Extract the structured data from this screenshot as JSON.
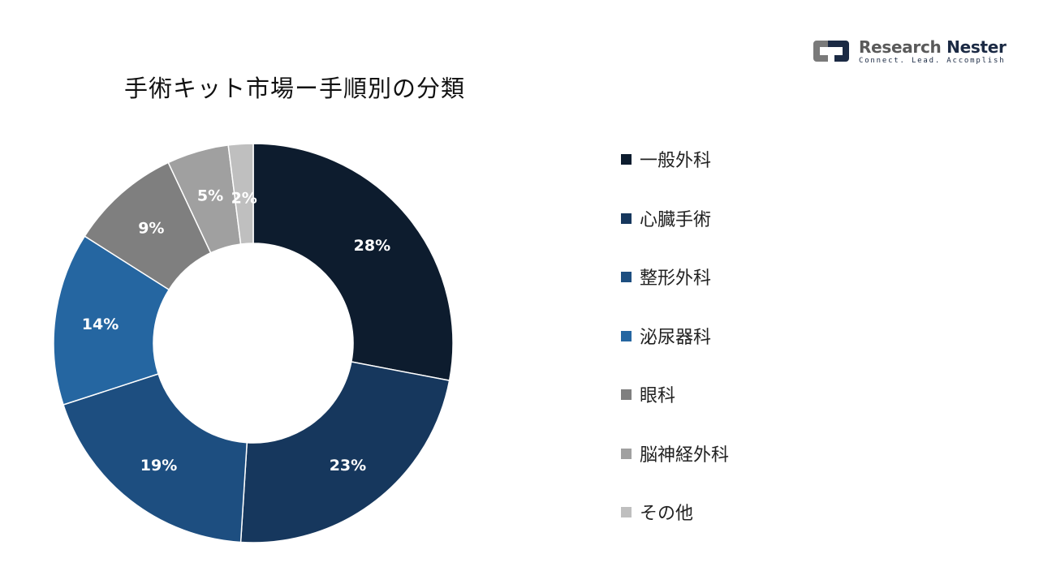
{
  "logo": {
    "name_part1": "Research",
    "name_part2": "Nester",
    "tagline": "Connect. Lead. Accomplish"
  },
  "chart_data": {
    "type": "pie",
    "title": "手術キット市場ー手順別の分類",
    "donut": true,
    "legend_position": "right",
    "categories": [
      "一般外科",
      "心臓手術",
      "整形外科",
      "泌尿器科",
      "眼科",
      "脳神経外科",
      "その他"
    ],
    "values": [
      28,
      23,
      19,
      14,
      9,
      5,
      2
    ],
    "value_labels": [
      "28%",
      "23%",
      "19%",
      "14%",
      "9%",
      "5%",
      "2%"
    ],
    "colors": [
      "#0d1c2e",
      "#16375d",
      "#1d4e80",
      "#2566a1",
      "#7f7f7f",
      "#a0a0a0",
      "#bfbfbf"
    ]
  }
}
